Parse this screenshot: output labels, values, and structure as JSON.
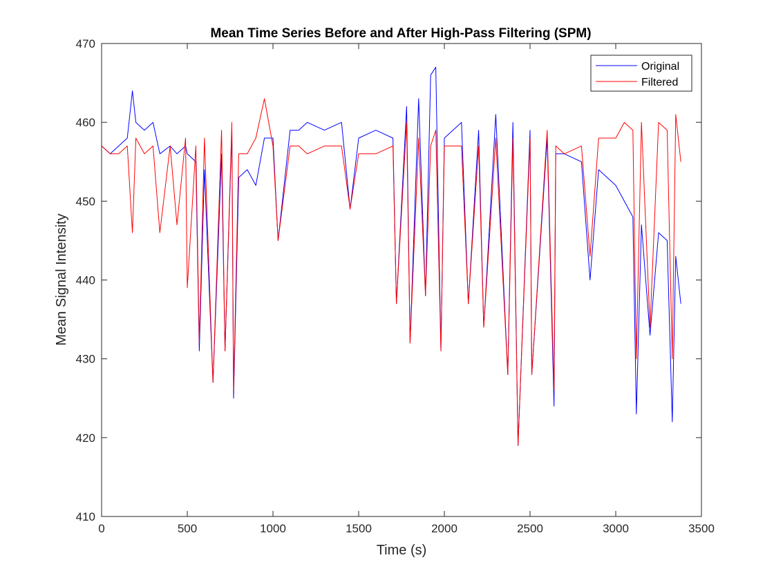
{
  "chart_data": {
    "type": "line",
    "title": "Mean Time Series Before and After High-Pass Filtering (SPM)",
    "xlabel": "Time (s)",
    "ylabel": "Mean Signal Intensity",
    "xlim": [
      0,
      3500
    ],
    "ylim": [
      410,
      470
    ],
    "xticks": [
      0,
      500,
      1000,
      1500,
      2000,
      2500,
      3000,
      3500
    ],
    "yticks": [
      410,
      420,
      430,
      440,
      450,
      460,
      470
    ],
    "grid": false,
    "legend_position": "top-right",
    "series": [
      {
        "name": "Original",
        "color": "#0000ff",
        "x": [
          0,
          50,
          100,
          150,
          180,
          200,
          250,
          300,
          340,
          400,
          440,
          490,
          500,
          550,
          570,
          600,
          650,
          700,
          720,
          760,
          770,
          800,
          850,
          900,
          950,
          1000,
          1030,
          1100,
          1150,
          1200,
          1300,
          1400,
          1450,
          1500,
          1600,
          1700,
          1720,
          1780,
          1800,
          1850,
          1890,
          1920,
          1950,
          1980,
          2000,
          2100,
          2140,
          2200,
          2230,
          2300,
          2370,
          2400,
          2430,
          2500,
          2510,
          2600,
          2640,
          2650,
          2700,
          2800,
          2850,
          2900,
          3000,
          3050,
          3100,
          3120,
          3150,
          3200,
          3250,
          3300,
          3330,
          3350,
          3380
        ],
        "y": [
          457,
          456,
          457,
          458,
          464,
          460,
          459,
          460,
          456,
          457,
          456,
          457,
          456,
          455,
          431,
          454,
          427,
          456,
          431,
          459,
          425,
          453,
          454,
          452,
          458,
          458,
          445,
          459,
          459,
          460,
          459,
          460,
          449,
          458,
          459,
          458,
          437,
          462,
          432,
          463,
          438,
          466,
          467,
          431,
          458,
          460,
          437,
          459,
          434,
          461,
          428,
          460,
          419,
          459,
          428,
          458,
          424,
          456,
          456,
          455,
          440,
          454,
          452,
          450,
          448,
          423,
          447,
          433,
          446,
          445,
          422,
          443,
          437
        ]
      },
      {
        "name": "Filtered",
        "color": "#ff0000",
        "x": [
          0,
          50,
          100,
          150,
          180,
          200,
          250,
          300,
          340,
          400,
          440,
          490,
          500,
          550,
          570,
          600,
          650,
          700,
          720,
          760,
          770,
          800,
          850,
          900,
          950,
          1000,
          1030,
          1100,
          1150,
          1200,
          1300,
          1400,
          1450,
          1500,
          1600,
          1700,
          1720,
          1780,
          1800,
          1850,
          1890,
          1920,
          1950,
          1980,
          2000,
          2100,
          2140,
          2200,
          2230,
          2300,
          2370,
          2400,
          2430,
          2500,
          2510,
          2600,
          2640,
          2650,
          2700,
          2800,
          2850,
          2900,
          3000,
          3050,
          3100,
          3120,
          3150,
          3200,
          3250,
          3300,
          3330,
          3350,
          3380
        ],
        "y": [
          457,
          456,
          456,
          457,
          446,
          458,
          456,
          457,
          446,
          457,
          447,
          458,
          439,
          457,
          432,
          458,
          427,
          459,
          431,
          460,
          426,
          456,
          456,
          458,
          463,
          457,
          445,
          457,
          457,
          456,
          457,
          457,
          449,
          456,
          456,
          457,
          437,
          460,
          432,
          458,
          438,
          457,
          459,
          431,
          457,
          457,
          437,
          457,
          434,
          458,
          428,
          458,
          419,
          458,
          428,
          459,
          426,
          457,
          456,
          457,
          443,
          458,
          458,
          460,
          459,
          430,
          460,
          434,
          460,
          459,
          430,
          461,
          455
        ]
      }
    ]
  }
}
